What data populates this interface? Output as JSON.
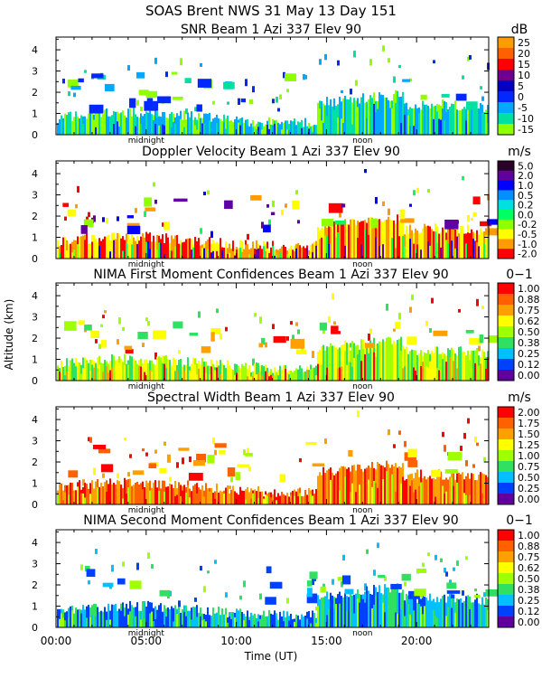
{
  "figure": {
    "title": "SOAS Brent NWS  31 May 13 Day 151",
    "ylabel": "Altitude (km)",
    "xlabel": "Time (UT)",
    "x_ticks": [
      "00:00",
      "05:00",
      "10:00",
      "15:00",
      "20:00"
    ],
    "x_tick_hours": [
      0,
      5,
      10,
      15,
      20
    ],
    "x_range_hours": [
      0,
      24
    ],
    "markers": [
      {
        "label": "midnight",
        "hour": 5
      },
      {
        "label": "noon",
        "hour": 17
      }
    ]
  },
  "chart_data": [
    {
      "type": "heatmap",
      "title": "SNR Beam 1 Azi 337 Elev 90",
      "unit": "dB",
      "ylim": [
        0,
        4.6
      ],
      "y_ticks": [
        "0",
        "1",
        "2",
        "3",
        "4"
      ],
      "colorbar_labels": [
        "25",
        "20",
        "15",
        "10",
        "5",
        "0",
        "-5",
        "-10",
        "-15"
      ],
      "colors": [
        "#ff9b00",
        "#ff6000",
        "#ff0000",
        "#6f0090",
        "#0000c0",
        "#0028ff",
        "#00a8ff",
        "#00e0a0",
        "#90ff00"
      ],
      "dominant_colors": [
        "#90ff00",
        "#00e0a0",
        "#00a8ff",
        "#0028ff"
      ]
    },
    {
      "type": "heatmap",
      "title": "Doppler Velocity Beam 1 Azi 337 Elev 90",
      "unit": "m/s",
      "ylim": [
        0,
        4.6
      ],
      "y_ticks": [
        "0",
        "1",
        "2",
        "3",
        "4"
      ],
      "colorbar_labels": [
        "5.0",
        "2.0",
        "1.0",
        "0.5",
        "0.2",
        "0.0",
        "-0.2",
        "-0.5",
        "-1.0",
        "-2.0"
      ],
      "colors": [
        "#2a002a",
        "#6000a0",
        "#0000ff",
        "#0090ff",
        "#00e0e0",
        "#00ff60",
        "#90ff00",
        "#ffff00",
        "#ff9b00",
        "#ff0000"
      ],
      "dominant_colors": [
        "#ff9b00",
        "#ffff00",
        "#ff0000",
        "#90ff00",
        "#6000a0",
        "#0000ff",
        "#00ff60"
      ]
    },
    {
      "type": "heatmap",
      "title": "NIMA First Moment Confidences Beam 1 Azi 337 Elev 90",
      "unit": "0−1",
      "ylim": [
        0,
        4.6
      ],
      "y_ticks": [
        "0",
        "1",
        "2",
        "3",
        "4"
      ],
      "colorbar_labels": [
        "1.00",
        "0.88",
        "0.75",
        "0.62",
        "0.50",
        "0.38",
        "0.25",
        "0.12",
        "0.00"
      ],
      "colors": [
        "#ff0000",
        "#ff6000",
        "#ffa000",
        "#ffff00",
        "#a0ff00",
        "#30e060",
        "#00c0ff",
        "#0040ff",
        "#6000a0"
      ],
      "dominant_colors": [
        "#a0ff00",
        "#30e060",
        "#ffff00",
        "#ffa000",
        "#ff0000"
      ]
    },
    {
      "type": "heatmap",
      "title": "Spectral Width Beam 1 Azi 337 Elev 90",
      "unit": "m/s",
      "ylim": [
        0,
        4.6
      ],
      "y_ticks": [
        "0",
        "1",
        "2",
        "3",
        "4"
      ],
      "colorbar_labels": [
        "2.00",
        "1.75",
        "1.50",
        "1.25",
        "1.00",
        "0.75",
        "0.50",
        "0.25",
        "0.00"
      ],
      "colors": [
        "#ff0000",
        "#ff6000",
        "#ffa000",
        "#ffff00",
        "#a0ff00",
        "#30e060",
        "#00c0ff",
        "#0040ff",
        "#6000a0"
      ],
      "dominant_colors": [
        "#ff0000",
        "#ff6000",
        "#ffa000",
        "#a0ff00",
        "#ffff00"
      ]
    },
    {
      "type": "heatmap",
      "title": "NIMA Second Moment Confidences Beam 1 Azi 337 Elev 90",
      "unit": "0−1",
      "ylim": [
        0,
        4.6
      ],
      "y_ticks": [
        "0",
        "1",
        "2",
        "3",
        "4"
      ],
      "colorbar_labels": [
        "1.00",
        "0.88",
        "0.75",
        "0.62",
        "0.50",
        "0.38",
        "0.25",
        "0.12",
        "0.00"
      ],
      "colors": [
        "#ff0000",
        "#ff6000",
        "#ffa000",
        "#ffff00",
        "#a0ff00",
        "#30e060",
        "#00c0ff",
        "#0040ff",
        "#6000a0"
      ],
      "dominant_colors": [
        "#0040ff",
        "#00c0ff",
        "#30e060",
        "#a0ff00"
      ]
    }
  ]
}
